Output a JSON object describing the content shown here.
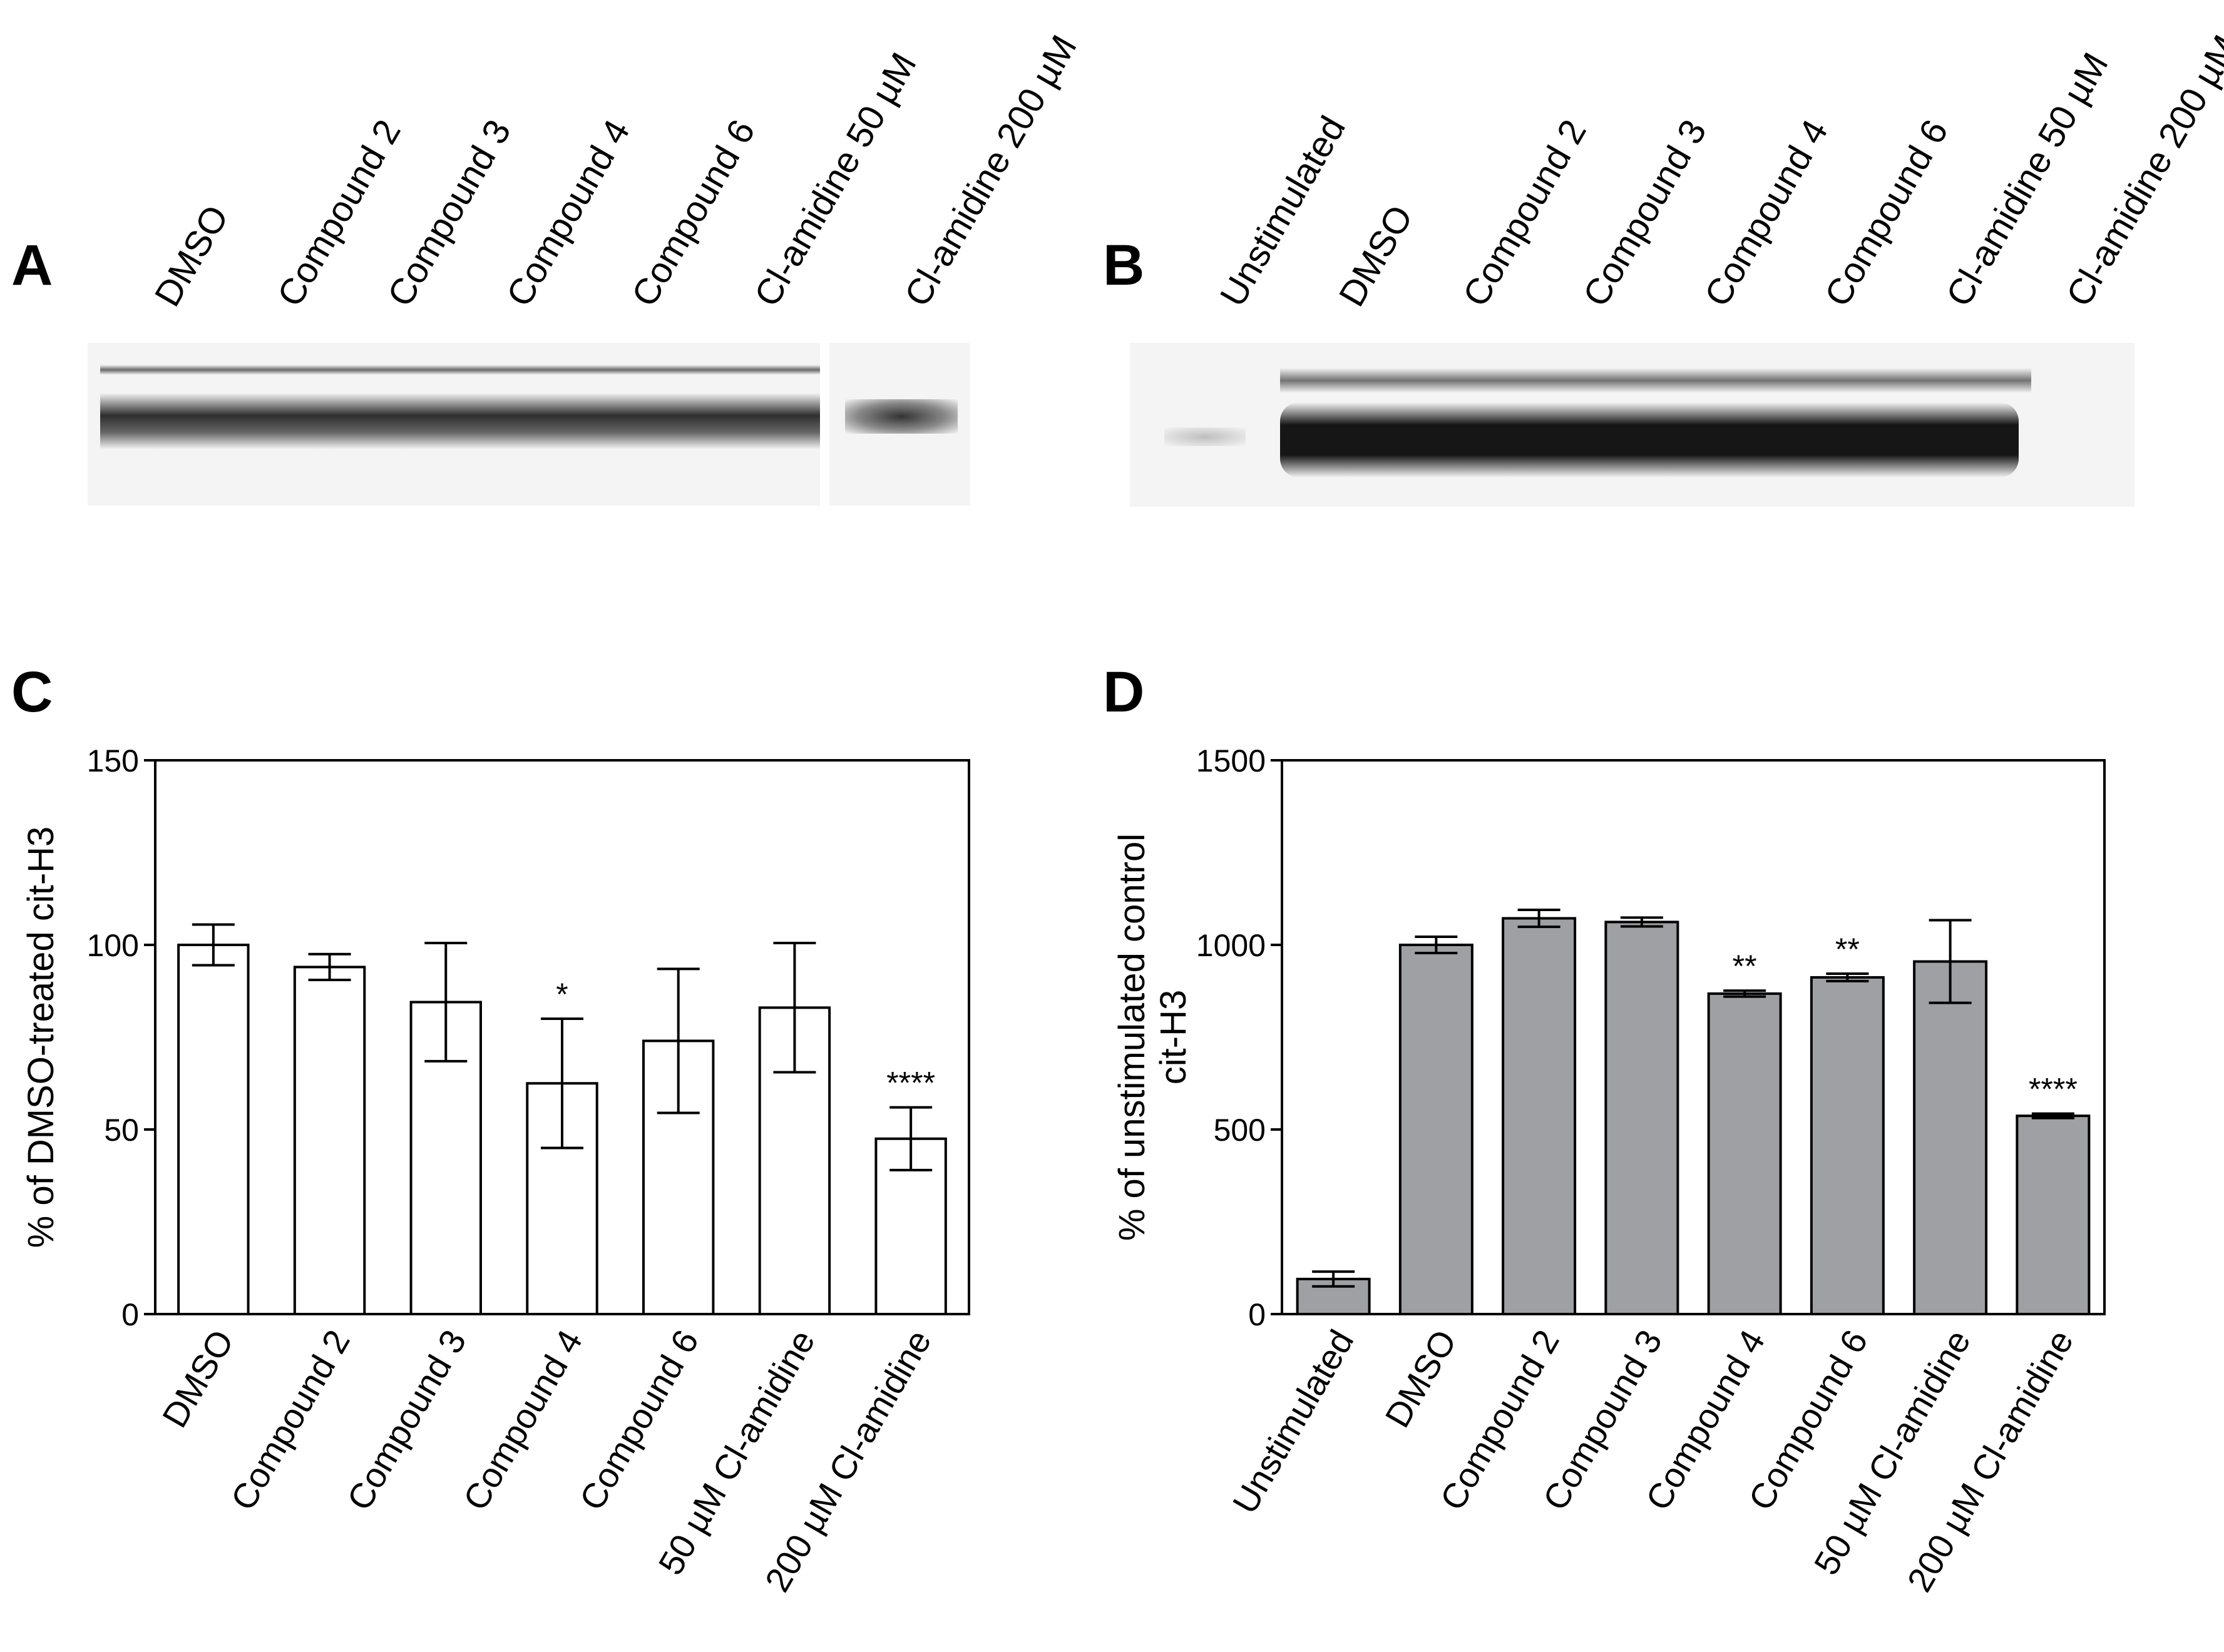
{
  "panels": {
    "a": {
      "letter": "A",
      "lanes": [
        "DMSO",
        "Compound 2",
        "Compound 3",
        "Compound 4",
        "Compound 6",
        "Cl-amidine 50 µM",
        "Cl-amidine 200 µM"
      ]
    },
    "b": {
      "letter": "B",
      "lanes": [
        "Unstimulated",
        "DMSO",
        "Compound 2",
        "Compound 3",
        "Compound 4",
        "Compound 6",
        "Cl-amidine 50 µM",
        "Cl-amidine 200 µM"
      ]
    },
    "c": {
      "letter": "C"
    },
    "d": {
      "letter": "D"
    }
  },
  "chart_data": [
    {
      "panel": "C",
      "type": "bar",
      "categories": [
        "DMSO",
        "Compound 2",
        "Compound 3",
        "Compound 4",
        "Compound 6",
        "50 µM  Cl-amidine",
        "200 µM  Cl-amidine"
      ],
      "values": [
        100,
        94,
        84.5,
        62.5,
        74,
        83,
        47.5
      ],
      "error": [
        5.5,
        3.5,
        16,
        17.5,
        19.5,
        17.5,
        8.5
      ],
      "significance": [
        "",
        "",
        "",
        "*",
        "",
        "",
        "****"
      ],
      "xlabel": "",
      "ylabel": "% of DMSO-treated cit-H3",
      "ylim": [
        0,
        150
      ],
      "yticks": [
        0,
        50,
        100,
        150
      ],
      "bar_color": "#ffffff",
      "grid": false
    },
    {
      "panel": "D",
      "type": "bar",
      "categories": [
        "Unstimulated",
        "DMSO",
        "Compound 2",
        "Compound 3",
        "Compound 4",
        "Compound 6",
        "50 µM Cl-amidine",
        "200 µM Cl-amidine"
      ],
      "values": [
        95,
        1000,
        1072,
        1062,
        868,
        912,
        955,
        537
      ],
      "error": [
        20,
        22,
        23,
        12,
        8,
        10,
        112,
        6
      ],
      "significance": [
        "",
        "",
        "",
        "",
        "**",
        "**",
        "",
        "****"
      ],
      "xlabel": "",
      "ylabel": "% of unstimulated control cit-H3",
      "ylim": [
        0,
        1500
      ],
      "yticks": [
        0,
        500,
        1000,
        1500
      ],
      "bar_color": "#9ea0a3",
      "grid": false
    }
  ]
}
